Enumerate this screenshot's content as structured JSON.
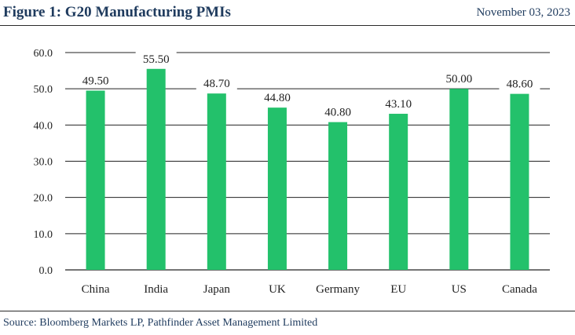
{
  "header": {
    "title": "Figure 1: G20 Manufacturing PMIs",
    "date": "November 03, 2023"
  },
  "footer": {
    "source": "Source: Bloomberg Markets LP, Pathfinder Asset Management Limited"
  },
  "colors": {
    "bar": "#23c16b",
    "title": "#1f3b5e",
    "axis": "#222222"
  },
  "chart_data": {
    "type": "bar",
    "categories": [
      "China",
      "India",
      "Japan",
      "UK",
      "Germany",
      "EU",
      "US",
      "Canada"
    ],
    "values": [
      49.5,
      55.5,
      48.7,
      44.8,
      40.8,
      43.1,
      50.0,
      48.6
    ],
    "data_labels": [
      "49.50",
      "55.50",
      "48.70",
      "44.80",
      "40.80",
      "43.10",
      "50.00",
      "48.60"
    ],
    "y_ticks": [
      "0.0",
      "10.0",
      "20.0",
      "30.0",
      "40.0",
      "50.0",
      "60.0"
    ],
    "ylim": [
      0,
      60
    ],
    "grid": true,
    "legend": "none",
    "title": "",
    "xlabel": "",
    "ylabel": ""
  }
}
